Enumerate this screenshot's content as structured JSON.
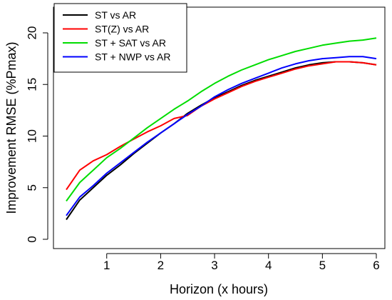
{
  "chart_data": {
    "type": "line",
    "title": "",
    "xlabel": "Horizon (x hours)",
    "ylabel": "Improvement RMSE (%Pmax)",
    "xlim": [
      0.25,
      6
    ],
    "ylim": [
      0,
      20
    ],
    "xticks": [
      1,
      2,
      3,
      4,
      5,
      6
    ],
    "yticks": [
      0,
      5,
      10,
      15,
      20
    ],
    "grid": false,
    "legend_position": "top-left",
    "x": [
      0.25,
      0.5,
      0.75,
      1.0,
      1.25,
      1.5,
      1.75,
      2.0,
      2.25,
      2.5,
      2.75,
      3.0,
      3.25,
      3.5,
      3.75,
      4.0,
      4.25,
      4.5,
      4.75,
      5.0,
      5.25,
      5.5,
      5.75,
      6.0
    ],
    "series": [
      {
        "name": "ST vs AR",
        "color": "#000000",
        "values": [
          1.9,
          3.8,
          5.0,
          6.2,
          7.2,
          8.3,
          9.3,
          10.3,
          11.2,
          12.2,
          13.0,
          13.7,
          14.3,
          14.9,
          15.4,
          15.8,
          16.2,
          16.6,
          16.9,
          17.1,
          17.2,
          17.2,
          17.1,
          16.9
        ]
      },
      {
        "name": "ST(Z) vs AR",
        "color": "#ff0000",
        "values": [
          4.8,
          6.7,
          7.6,
          8.2,
          9.0,
          9.7,
          10.4,
          11.0,
          11.7,
          12.0,
          12.9,
          13.6,
          14.2,
          14.8,
          15.3,
          15.7,
          16.1,
          16.5,
          16.8,
          17.0,
          17.2,
          17.2,
          17.1,
          16.9
        ]
      },
      {
        "name": "ST + SAT vs AR",
        "color": "#00dd00",
        "values": [
          3.7,
          5.5,
          6.7,
          7.9,
          8.8,
          9.8,
          10.8,
          11.7,
          12.6,
          13.4,
          14.3,
          15.1,
          15.8,
          16.4,
          16.9,
          17.4,
          17.8,
          18.2,
          18.5,
          18.8,
          19.0,
          19.2,
          19.3,
          19.5
        ]
      },
      {
        "name": "ST + NWP vs AR",
        "color": "#0000ff",
        "values": [
          2.3,
          4.1,
          5.2,
          6.4,
          7.4,
          8.4,
          9.4,
          10.3,
          11.2,
          12.1,
          12.9,
          13.8,
          14.5,
          15.1,
          15.6,
          16.1,
          16.6,
          17.0,
          17.3,
          17.5,
          17.6,
          17.7,
          17.7,
          17.5
        ]
      }
    ]
  }
}
